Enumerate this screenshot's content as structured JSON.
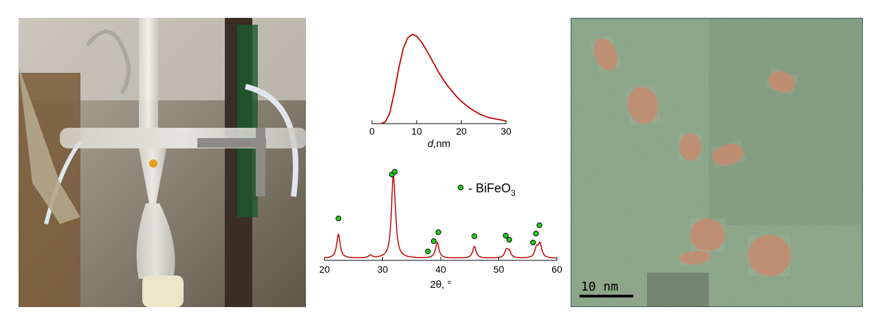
{
  "chart_data": [
    {
      "type": "line",
      "xlabel_italic": "d",
      "xlabel_unit": ",nm",
      "xlim": [
        0,
        30
      ],
      "x_ticks": [
        "0",
        "10",
        "20",
        "30"
      ],
      "series": [
        {
          "x": [
            2,
            3,
            4,
            5,
            6,
            7,
            8,
            9,
            10,
            11,
            12,
            13,
            14,
            15,
            16,
            17,
            18,
            19,
            20,
            21,
            22,
            23,
            24,
            25,
            26,
            27,
            28,
            29,
            30
          ],
          "y": [
            0.0,
            0.02,
            0.12,
            0.35,
            0.62,
            0.84,
            0.96,
            1.0,
            0.98,
            0.92,
            0.84,
            0.75,
            0.66,
            0.57,
            0.49,
            0.42,
            0.36,
            0.3,
            0.25,
            0.21,
            0.17,
            0.14,
            0.11,
            0.09,
            0.07,
            0.06,
            0.05,
            0.04,
            0.03
          ]
        }
      ],
      "color": "#c00000"
    },
    {
      "type": "line",
      "xlabel": "2θ, °",
      "xlim": [
        20,
        60
      ],
      "x_ticks": [
        "20",
        "30",
        "40",
        "50",
        "60"
      ],
      "legend_marker_label": "- BiFeO",
      "legend_sub": "3",
      "peaks": [
        {
          "x": 22.4,
          "h": 0.35
        },
        {
          "x": 27.9,
          "h": 0.04
        },
        {
          "x": 31.8,
          "h": 1.0
        },
        {
          "x": 32.1,
          "h": 0.35
        },
        {
          "x": 39.4,
          "h": 0.23
        },
        {
          "x": 45.8,
          "h": 0.17
        },
        {
          "x": 51.3,
          "h": 0.11
        },
        {
          "x": 51.8,
          "h": 0.09
        },
        {
          "x": 56.5,
          "h": 0.14
        },
        {
          "x": 57.1,
          "h": 0.2
        }
      ],
      "markers": [
        {
          "x": 22.4,
          "level": 0.58
        },
        {
          "x": 31.6,
          "level": 1.22
        },
        {
          "x": 32.1,
          "level": 1.26
        },
        {
          "x": 37.8,
          "level": 0.1
        },
        {
          "x": 38.8,
          "level": 0.25
        },
        {
          "x": 39.6,
          "level": 0.38
        },
        {
          "x": 45.8,
          "level": 0.32
        },
        {
          "x": 51.2,
          "level": 0.33
        },
        {
          "x": 51.8,
          "level": 0.27
        },
        {
          "x": 55.9,
          "level": 0.23
        },
        {
          "x": 56.4,
          "level": 0.36
        },
        {
          "x": 57.0,
          "level": 0.48
        }
      ],
      "line_color": "#c00000",
      "marker_color": "#22cc22"
    }
  ],
  "tem": {
    "scale_bar_label": "10 nm",
    "background_color": "#7fa07a",
    "particle_color": "#c8805e"
  }
}
